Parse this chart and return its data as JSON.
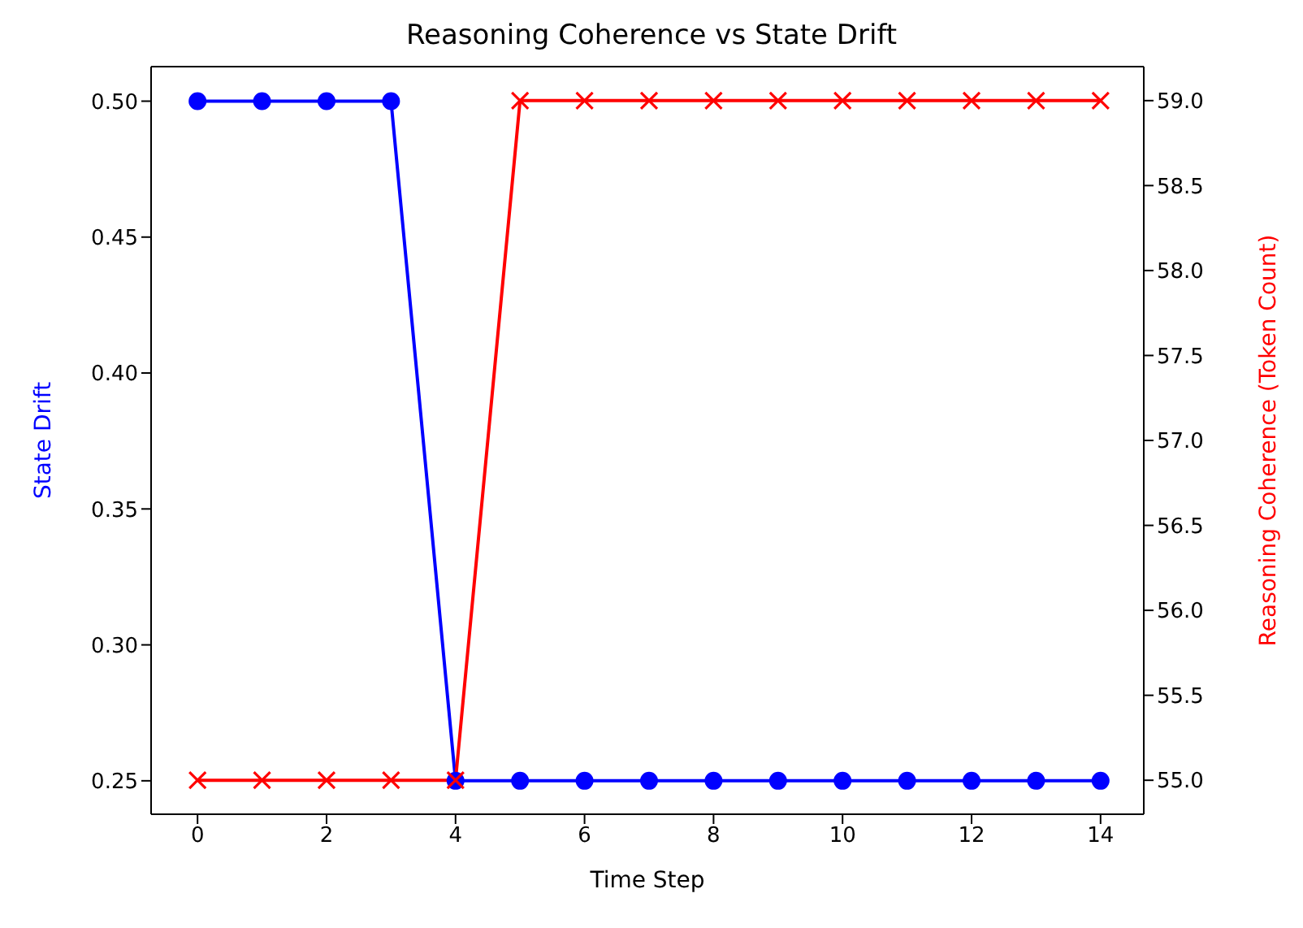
{
  "chart_data": {
    "type": "line",
    "title": "Reasoning Coherence vs State Drift",
    "xlabel": "Time Step",
    "ylabel": "State Drift",
    "y2label": "Reasoning Coherence (Token Count)",
    "x": [
      0,
      1,
      2,
      3,
      4,
      5,
      6,
      7,
      8,
      9,
      10,
      11,
      12,
      13,
      14
    ],
    "series": [
      {
        "color": "#0000ff",
        "marker": "circle",
        "values": [
          0.5,
          0.5,
          0.5,
          0.5,
          0.25,
          0.25,
          0.25,
          0.25,
          0.25,
          0.25,
          0.25,
          0.25,
          0.25,
          0.25,
          0.25
        ]
      },
      {
        "color": "#ff0000",
        "marker": "cross",
        "axis": "y2",
        "values": [
          55,
          55,
          55,
          55,
          55,
          59,
          59,
          59,
          59,
          59,
          59,
          59,
          59,
          59,
          59
        ]
      }
    ],
    "xlim": [
      -0.72,
      14.67
    ],
    "xticks": [
      0,
      2,
      4,
      6,
      8,
      10,
      12,
      14
    ],
    "ylim": [
      0.2377,
      0.5127
    ],
    "yticks": [
      0.25,
      {
        "value": 0.3,
        "label": "0.30"
      },
      0.35,
      {
        "value": 0.4,
        "label": "0.40"
      },
      0.45,
      {
        "value": 0.5,
        "label": "0.50"
      }
    ],
    "y2lim": [
      54.8,
      59.2
    ],
    "y2ticks": [
      {
        "value": 55,
        "label": "55.0"
      },
      55.5,
      {
        "value": 56,
        "label": "56.0"
      },
      56.5,
      {
        "value": 57,
        "label": "57.0"
      },
      57.5,
      {
        "value": 58,
        "label": "58.0"
      },
      58.5,
      {
        "value": 59,
        "label": "59.0"
      }
    ],
    "grid": false,
    "legend": false
  }
}
